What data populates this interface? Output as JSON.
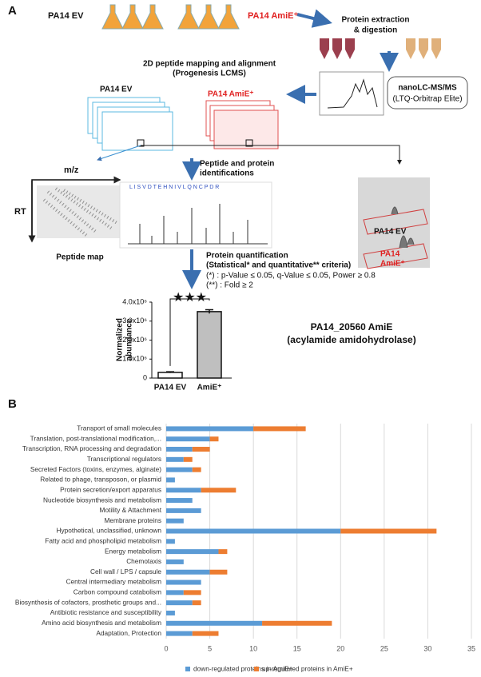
{
  "panel_a": {
    "label": "A",
    "ev_label": "PA14 EV",
    "amie_label": "PA14 AmiE⁺",
    "extraction": [
      "Protein extraction",
      "& digestion"
    ],
    "mapping": [
      "2D peptide mapping  and alignment",
      "(Progenesis LCMS)"
    ],
    "lcms": [
      "nanoLC-MS/MS",
      "(LTQ-Orbitrap Elite)"
    ],
    "stack_ev": "PA14 EV",
    "stack_amie": "PA14 AmiE⁺",
    "mz": "m/z",
    "rt": "RT",
    "peptide_map": "Peptide map",
    "identification": [
      "Peptide and protein",
      "identifications"
    ],
    "sequence": "L I S V D T E H N I V L Q N C P D R",
    "quantification": [
      "Protein quantification",
      "(Statistical* and quantitative** criteria)",
      "(*) : p-Value ≤ 0.05, q-Value ≤ 0.05, Power ≥ 0.8",
      "(**) : Fold ≥ 2"
    ],
    "peak_ev": "PA14 EV",
    "peak_amie": [
      "PA14",
      "AmiE⁺"
    ],
    "protein": [
      "PA14_20560 AmiE",
      "(acylamide amidohydrolase)"
    ]
  },
  "panel_b": {
    "label": "B"
  },
  "chart_data": [
    {
      "type": "bar",
      "y_label": [
        "Normalized",
        "abundance"
      ],
      "annotation": "★★★",
      "categories": [
        "PA14 EV",
        "AmiE⁺"
      ],
      "values": [
        300000,
        3500000
      ],
      "errors": [
        30000,
        100000
      ],
      "colors": [
        "#ffffff",
        "#bfbfbf"
      ],
      "ylim": [
        0,
        4000000
      ],
      "yticks": [
        0,
        {
          "value": 1000000,
          "label": "1.0x10⁶"
        },
        {
          "value": 2000000,
          "label": "2.0x10⁶"
        },
        {
          "value": 3000000,
          "label": "3.0x10⁶"
        },
        {
          "value": 4000000,
          "label": "4.0x10⁶"
        }
      ]
    },
    {
      "type": "stacked_barh",
      "grid": true,
      "legend": "bottom",
      "categories": [
        "Transport of small molecules",
        "Translation, post-translational modification,...",
        "Transcription, RNA processing and degradation",
        "Transcriptional regulators",
        "Secreted Factors (toxins, enzymes, alginate)",
        "Related to phage, transposon, or plasmid",
        "Protein secretion/export apparatus",
        "Nucleotide biosynthesis and metabolism",
        "Motility & Attachment",
        "Membrane proteins",
        "Hypothetical, unclassified, unknown",
        "Fatty acid and phospholipid metabolism",
        "Energy metabolism",
        "Chemotaxis",
        "Cell wall / LPS / capsule",
        "Central intermediary metabolism",
        "Carbon compound catabolism",
        "Biosynthesis of cofactors, prosthetic groups and...",
        "Antibiotic resistance and susceptibility",
        "Amino acid biosynthesis and metabolism",
        "Adaptation, Protection"
      ],
      "series": [
        {
          "name": "down-regulated proteins in AmiE+",
          "color": "#5b9bd5",
          "values": [
            10,
            5,
            3,
            2,
            3,
            1,
            4,
            3,
            4,
            2,
            20,
            1,
            6,
            2,
            5,
            4,
            2,
            3,
            1,
            11,
            3
          ]
        },
        {
          "name": "up-regulated proteins in AmiE+",
          "color": "#ed7d31",
          "values": [
            6,
            1,
            2,
            1,
            1,
            0,
            4,
            0,
            0,
            0,
            11,
            0,
            1,
            0,
            2,
            0,
            2,
            1,
            0,
            8,
            3
          ]
        }
      ],
      "xlim": [
        0,
        35
      ],
      "xticks": [
        0,
        5,
        10,
        15,
        20,
        25,
        30,
        35
      ]
    }
  ]
}
